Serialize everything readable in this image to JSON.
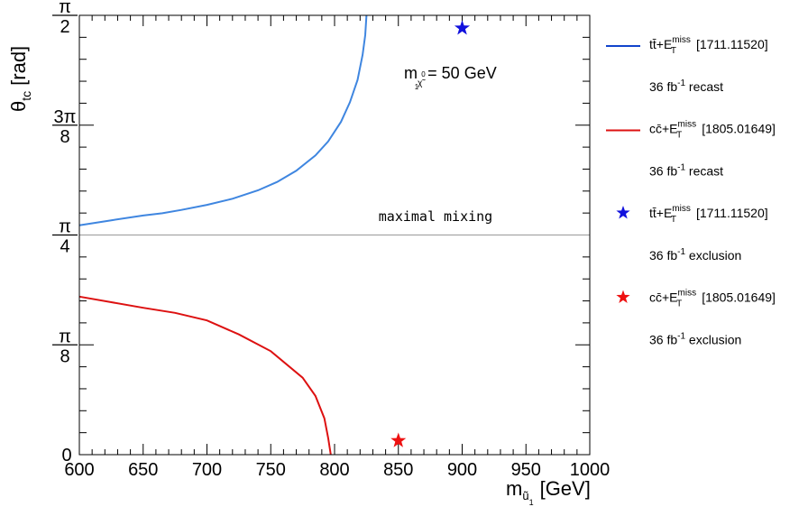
{
  "chart_data": {
    "type": "line",
    "title": "",
    "xlabel": "m",
    "xlabel_sub": "ũ",
    "xlabel_subsub": "1",
    "xlabel_unit": "[GeV]",
    "ylabel": "θ",
    "ylabel_sub": "tc",
    "ylabel_unit": "[rad]",
    "xlim": [
      600,
      1000
    ],
    "ylim": [
      0,
      1.5708
    ],
    "xticks": [
      600,
      650,
      700,
      750,
      800,
      850,
      900,
      950,
      1000
    ],
    "xtick_labels": [
      "600",
      "650",
      "700",
      "750",
      "800",
      "850",
      "900",
      "950",
      "1000"
    ],
    "yticks": [
      {
        "value": 0,
        "num": "0",
        "den": ""
      },
      {
        "value": 0.3927,
        "num": "π",
        "den": "8"
      },
      {
        "value": 0.7854,
        "num": "π",
        "den": "4"
      },
      {
        "value": 1.1781,
        "num": "3π",
        "den": "8"
      },
      {
        "value": 1.5708,
        "num": "π",
        "den": "2"
      }
    ],
    "annotation": {
      "m": "m",
      "sub": "χ̃",
      "sub2": "0",
      "sub3": "1",
      "rest": "= 50 GeV"
    },
    "maximal_mixing": {
      "y": 0.7854,
      "label": "maximal mixing",
      "color": "#999999"
    },
    "series": [
      {
        "color": "#3f86e0",
        "points": [
          [
            600,
            0.82
          ],
          [
            625,
            0.838
          ],
          [
            650,
            0.855
          ],
          [
            665,
            0.863
          ],
          [
            680,
            0.875
          ],
          [
            700,
            0.893
          ],
          [
            720,
            0.915
          ],
          [
            740,
            0.945
          ],
          [
            755,
            0.975
          ],
          [
            770,
            1.015
          ],
          [
            785,
            1.07
          ],
          [
            795,
            1.12
          ],
          [
            805,
            1.19
          ],
          [
            812,
            1.26
          ],
          [
            818,
            1.34
          ],
          [
            822,
            1.43
          ],
          [
            824,
            1.5
          ],
          [
            825,
            1.5708
          ]
        ]
      },
      {
        "color": "#dd1111",
        "points": [
          [
            600,
            0.565
          ],
          [
            625,
            0.545
          ],
          [
            650,
            0.525
          ],
          [
            675,
            0.507
          ],
          [
            700,
            0.48
          ],
          [
            725,
            0.43
          ],
          [
            750,
            0.37
          ],
          [
            775,
            0.275
          ],
          [
            785,
            0.21
          ],
          [
            792,
            0.13
          ],
          [
            795,
            0.06
          ],
          [
            797,
            0.0
          ]
        ]
      }
    ],
    "markers": [
      {
        "x": 900,
        "y": 1.525,
        "color": "#1111dd"
      },
      {
        "x": 850,
        "y": 0.05,
        "color": "#ee1111"
      }
    ],
    "legend": {
      "position": "right",
      "entries": [
        {
          "kind": "line",
          "color": "#1144cc",
          "main": "tt̄+E",
          "sup": "miss",
          "sub": "T",
          "ref": "[1711.11520]",
          "line2a": "36 fb",
          "line2sup": "-1",
          "line2b": " recast"
        },
        {
          "kind": "line",
          "color": "#dd1111",
          "main": "cc̄+E",
          "sup": "miss",
          "sub": "T",
          "ref": "[1805.01649]",
          "line2a": "36 fb",
          "line2sup": "-1",
          "line2b": " recast"
        },
        {
          "kind": "star",
          "color": "#1111dd",
          "main": "tt̄+E",
          "sup": "miss",
          "sub": "T",
          "ref": "[1711.11520]",
          "line2a": "36 fb",
          "line2sup": "-1",
          "line2b": " exclusion"
        },
        {
          "kind": "star",
          "color": "#ee1111",
          "main": "cc̄+E",
          "sup": "miss",
          "sub": "T",
          "ref": "[1805.01649]",
          "line2a": "36 fb",
          "line2sup": "-1",
          "line2b": " exclusion"
        }
      ]
    }
  }
}
